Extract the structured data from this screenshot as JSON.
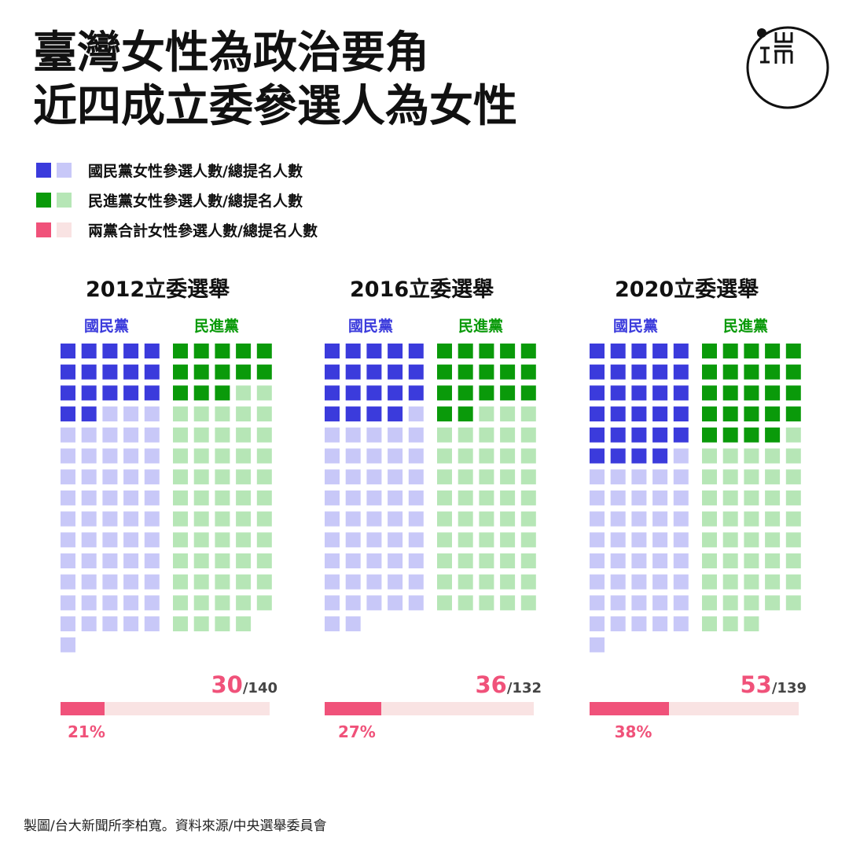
{
  "title": {
    "line1": "臺灣女性為政治要角",
    "line2": "近四成立委參選人為女性"
  },
  "logo": {
    "glyph": "端",
    "name": "initium-logo"
  },
  "legend": [
    {
      "label": "國民黨女性參選人數/總提名人數",
      "dark": "#3b3bdc",
      "light": "#c8c8f8"
    },
    {
      "label": "民進黨女性參選人數/總提名人數",
      "dark": "#0a9a0a",
      "light": "#b6e6b6"
    },
    {
      "label": "兩黨合計女性參選人數/總提名人數",
      "dark": "#f0527a",
      "light": "#f9e3e3"
    }
  ],
  "colors": {
    "kmt_dark": "#3b3bdc",
    "kmt_light": "#c8c8f8",
    "dpp_dark": "#0a9a0a",
    "dpp_light": "#b6e6b6",
    "combined": "#f0527a",
    "combined_light": "#f9e3e3"
  },
  "chart_data": [
    {
      "type": "waffle",
      "title": "2012立委選舉",
      "series": [
        {
          "name": "國民黨",
          "women": 17,
          "total": 71
        },
        {
          "name": "民進黨",
          "women": 13,
          "total": 69
        }
      ],
      "combined": {
        "women": 30,
        "total": 140,
        "percent_label": "21%",
        "percent": 21
      }
    },
    {
      "type": "waffle",
      "title": "2016立委選舉",
      "series": [
        {
          "name": "國民黨",
          "women": 19,
          "total": 67
        },
        {
          "name": "民進黨",
          "women": 17,
          "total": 65
        }
      ],
      "combined": {
        "women": 36,
        "total": 132,
        "percent_label": "27%",
        "percent": 27
      }
    },
    {
      "type": "waffle",
      "title": "2020立委選舉",
      "series": [
        {
          "name": "國民黨",
          "women": 29,
          "total": 71
        },
        {
          "name": "民進黨",
          "women": 24,
          "total": 68
        }
      ],
      "combined": {
        "women": 53,
        "total": 139,
        "percent_label": "38%",
        "percent": 38
      }
    }
  ],
  "credit": "製圖/台大新聞所李柏寬。資料來源/中央選舉委員會"
}
